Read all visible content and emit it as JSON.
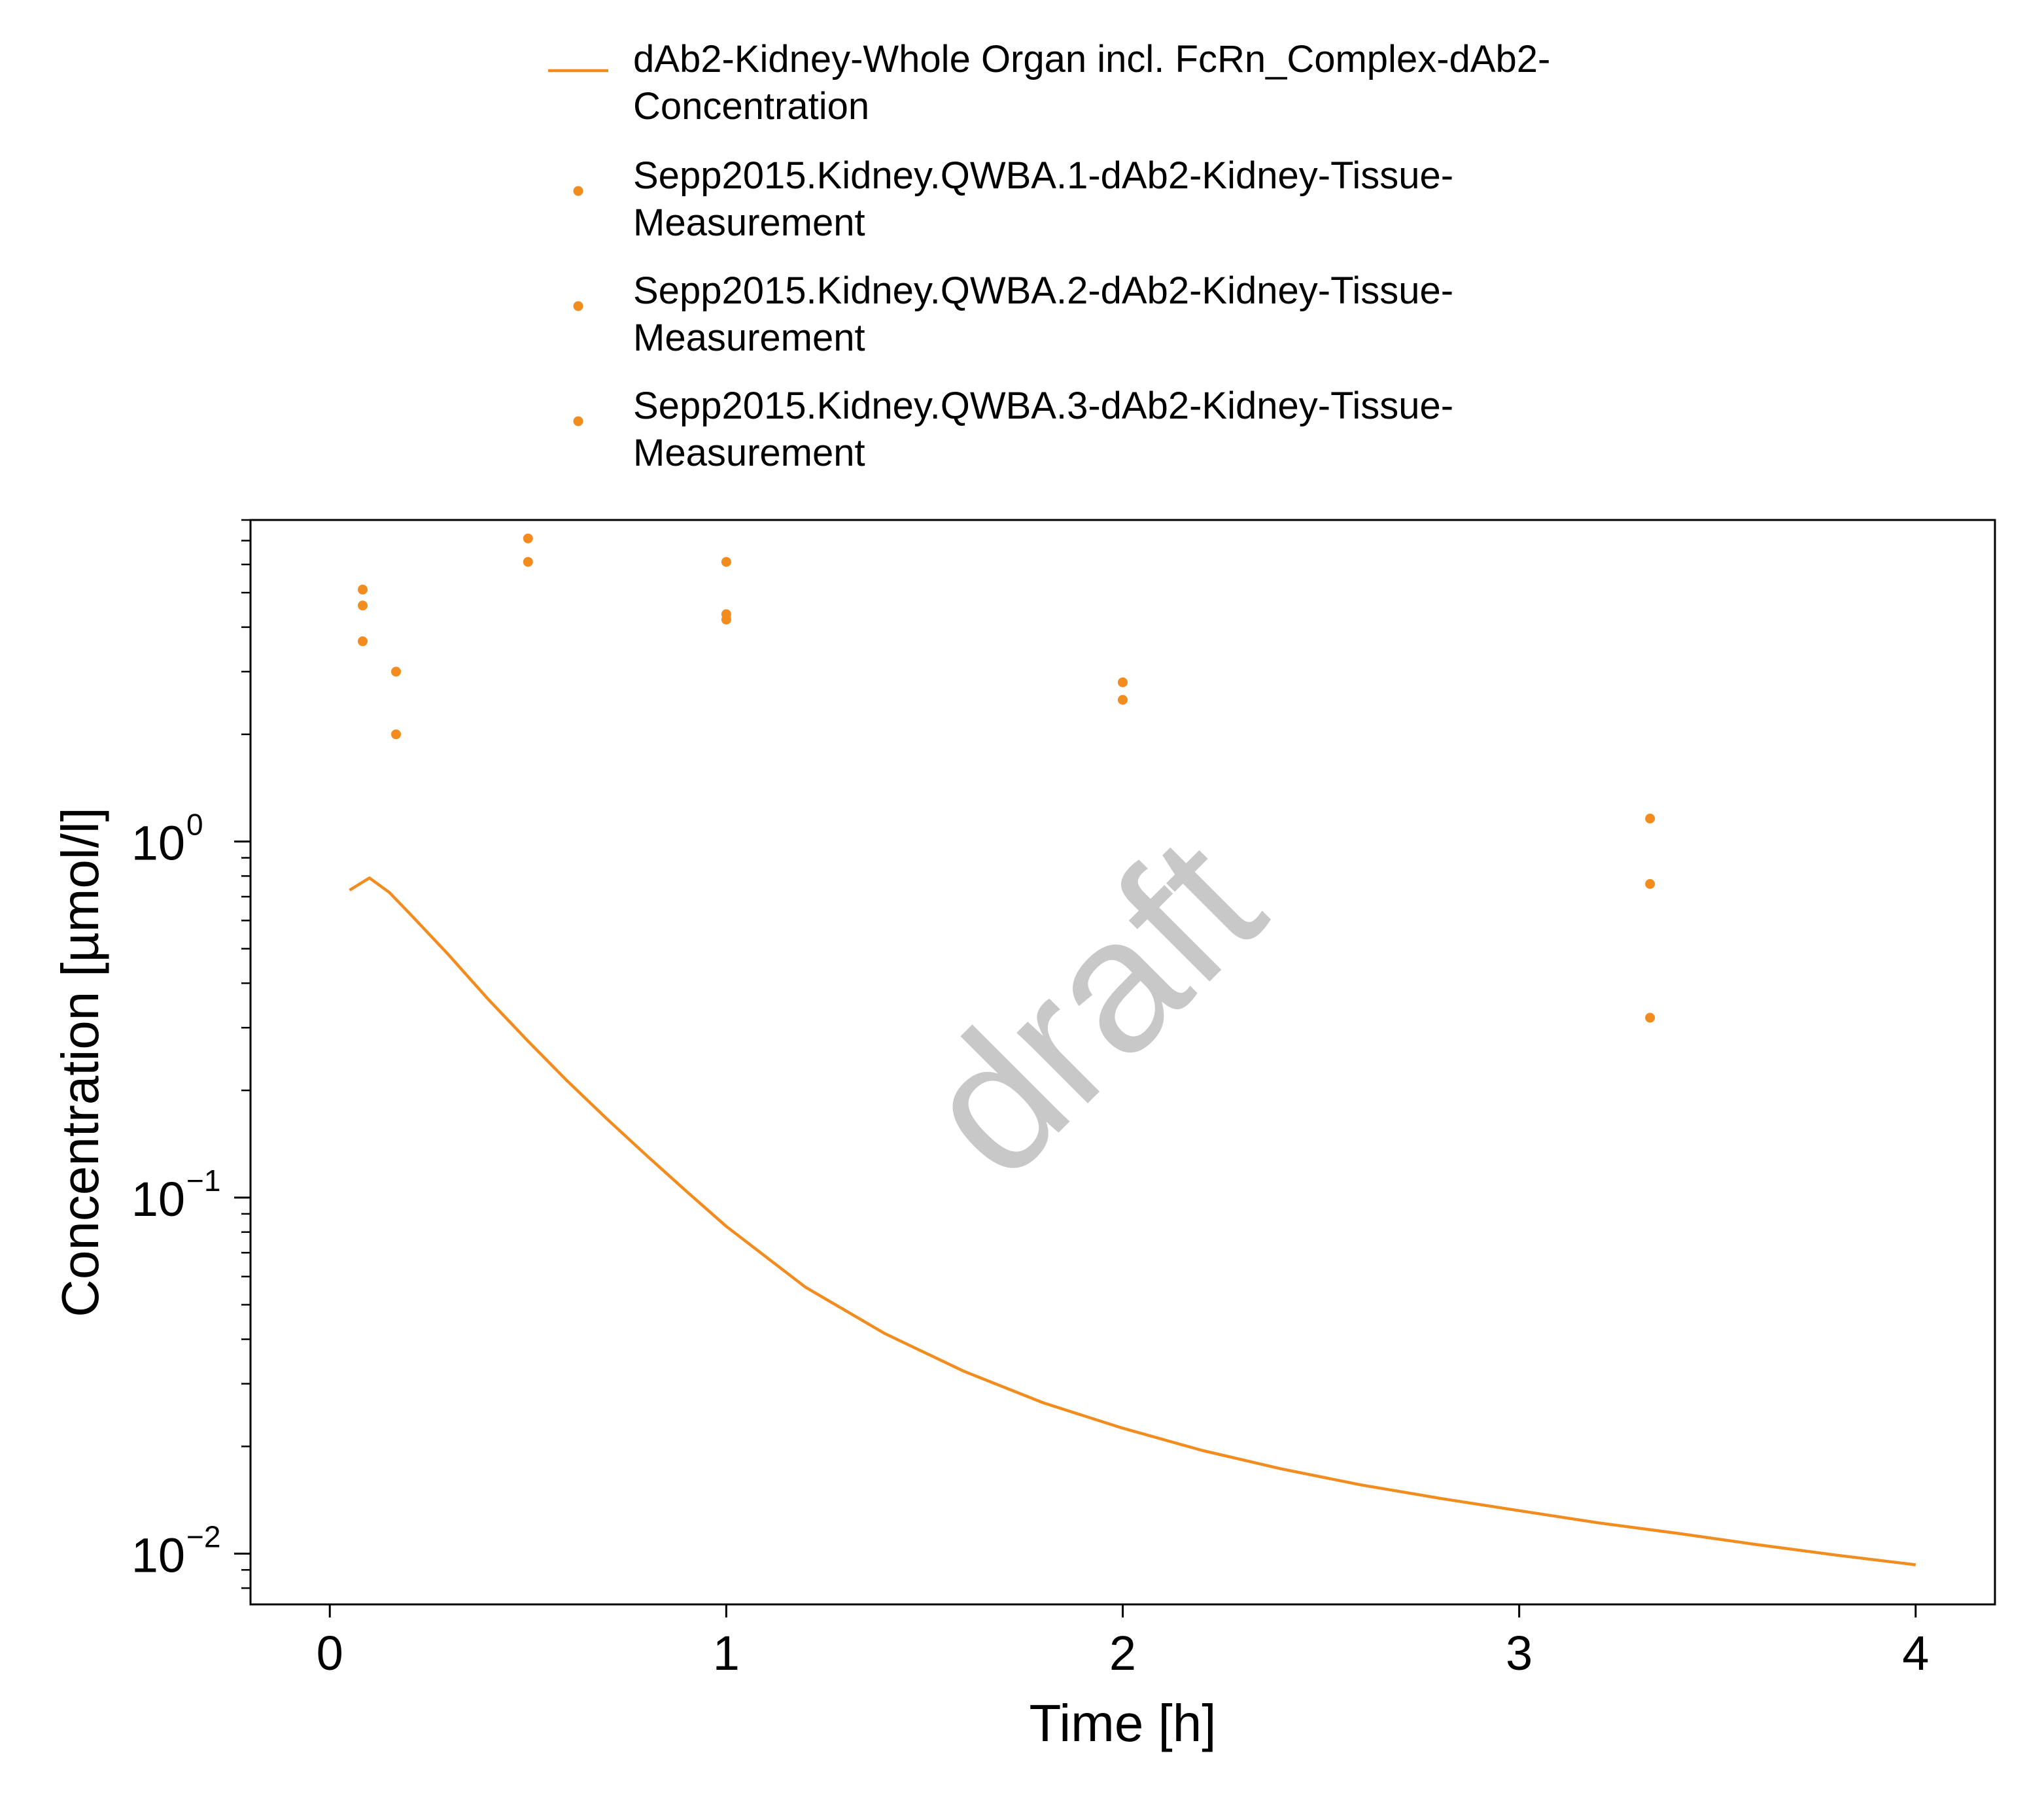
{
  "chart_data": {
    "type": "line",
    "xlabel": "Time [h]",
    "ylabel": "Concentration [µmol/l]",
    "xlim": [
      -0.2,
      4.2
    ],
    "ylim": [
      0.0072,
      8.0
    ],
    "y_scale": "log",
    "x_ticks": [
      {
        "value": 0,
        "label": "0"
      },
      {
        "value": 1,
        "label": "1"
      },
      {
        "value": 2,
        "label": "2"
      },
      {
        "value": 3,
        "label": "3"
      },
      {
        "value": 4,
        "label": "4"
      }
    ],
    "y_ticks": [
      {
        "value": 1,
        "base": "10",
        "exp": "0"
      },
      {
        "value": 0.1,
        "base": "10",
        "exp": "−1"
      },
      {
        "value": 0.01,
        "base": "10",
        "exp": "−2"
      }
    ],
    "grid": false,
    "legend_position": "top",
    "watermark": "draft",
    "colors": {
      "series": "#f28c1e"
    },
    "series": [
      {
        "name": "dAb2-Kidney-Whole Organ incl. FcRn_Complex-dAb2-Concentration",
        "legend_lines": [
          "dAb2-Kidney-Whole Organ incl. FcRn_Complex-dAb2-",
          "Concentration"
        ],
        "kind": "line",
        "x": [
          0.05,
          0.1,
          0.15,
          0.2,
          0.3,
          0.4,
          0.5,
          0.6,
          0.7,
          0.8,
          0.9,
          1.0,
          1.2,
          1.4,
          1.6,
          1.8,
          2.0,
          2.2,
          2.4,
          2.6,
          2.8,
          3.0,
          3.2,
          3.4,
          3.6,
          3.8,
          4.0
        ],
        "y": [
          0.73,
          0.79,
          0.72,
          0.63,
          0.48,
          0.36,
          0.275,
          0.212,
          0.166,
          0.131,
          0.104,
          0.083,
          0.056,
          0.0415,
          0.0325,
          0.0265,
          0.0225,
          0.0195,
          0.0173,
          0.0156,
          0.0143,
          0.0132,
          0.0122,
          0.0114,
          0.0106,
          0.0099,
          0.0093
        ]
      },
      {
        "name": "Sepp2015.Kidney.QWBA.1-dAb2-Kidney-Tissue-Measurement",
        "legend_lines": [
          "Sepp2015.Kidney.QWBA.1-dAb2-Kidney-Tissue-",
          "Measurement"
        ],
        "kind": "scatter",
        "x": [
          0.083,
          0.167,
          0.5,
          1.0,
          2.0,
          3.33
        ],
        "y": [
          5.1,
          3.0,
          7.1,
          6.1,
          2.8,
          1.16
        ]
      },
      {
        "name": "Sepp2015.Kidney.QWBA.2-dAb2-Kidney-Tissue-Measurement",
        "legend_lines": [
          "Sepp2015.Kidney.QWBA.2-dAb2-Kidney-Tissue-",
          "Measurement"
        ],
        "kind": "scatter",
        "x": [
          0.083,
          0.167,
          0.5,
          1.0,
          2.0,
          3.33
        ],
        "y": [
          4.6,
          2.0,
          6.1,
          4.2,
          2.5,
          0.76
        ]
      },
      {
        "name": "Sepp2015.Kidney.QWBA.3-dAb2-Kidney-Tissue-Measurement",
        "legend_lines": [
          "Sepp2015.Kidney.QWBA.3-dAb2-Kidney-Tissue-",
          "Measurement"
        ],
        "kind": "scatter",
        "x": [
          0.083,
          1.0,
          3.33
        ],
        "y": [
          3.65,
          4.35,
          0.32
        ]
      }
    ]
  }
}
